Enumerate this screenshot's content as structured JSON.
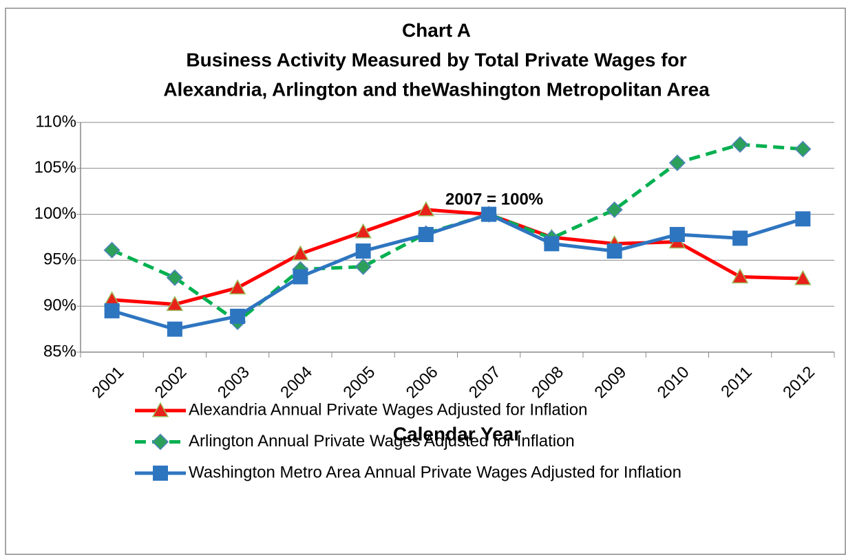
{
  "chart_data": {
    "type": "line",
    "title": [
      "Chart A",
      "Business Activity  Measured by Total Private Wages for",
      "Alexandria, Arlington and theWashington Metropolitan Area"
    ],
    "annotation": "2007 = 100%",
    "x_label": "Calendar Year",
    "categories": [
      "2001",
      "2002",
      "2003",
      "2004",
      "2005",
      "2006",
      "2007",
      "2008",
      "2009",
      "2010",
      "2011",
      "2012"
    ],
    "ylim": [
      85,
      110
    ],
    "yticks": [
      {
        "value": 85,
        "label": "85%"
      },
      {
        "value": 90,
        "label": "90%"
      },
      {
        "value": 95,
        "label": "95%"
      },
      {
        "value": 100,
        "label": "100%"
      },
      {
        "value": 105,
        "label": "105%"
      },
      {
        "value": 110,
        "label": "110%"
      }
    ],
    "grid": true,
    "legend": "bottom",
    "series": [
      {
        "name": "Alexandria Annual Private Wages Adjusted for Inflation",
        "color": "#ff0000",
        "marker": "triangle",
        "marker_color": "#e8211b",
        "dashed": false,
        "values": [
          90.7,
          90.2,
          92.0,
          95.7,
          98.1,
          100.5,
          100,
          97.5,
          96.8,
          97.0,
          93.2,
          93.0
        ]
      },
      {
        "name": "Arlington Annual Private Wages Adjusted for Inflation",
        "color": "#00b050",
        "marker": "diamond",
        "marker_color": "#2ca05a",
        "dashed": true,
        "values": [
          96.1,
          93.1,
          88.3,
          94.0,
          94.3,
          97.9,
          100,
          97.4,
          100.5,
          105.6,
          107.6,
          107.1
        ]
      },
      {
        "name": "Washington Metro Area Annual Private Wages Adjusted for Inflation",
        "color": "#2e75c0",
        "marker": "square",
        "marker_color": "#2e75c0",
        "dashed": false,
        "values": [
          89.5,
          87.5,
          88.9,
          93.2,
          96.0,
          97.8,
          100,
          96.8,
          96.0,
          97.8,
          97.4,
          99.5
        ]
      }
    ]
  }
}
